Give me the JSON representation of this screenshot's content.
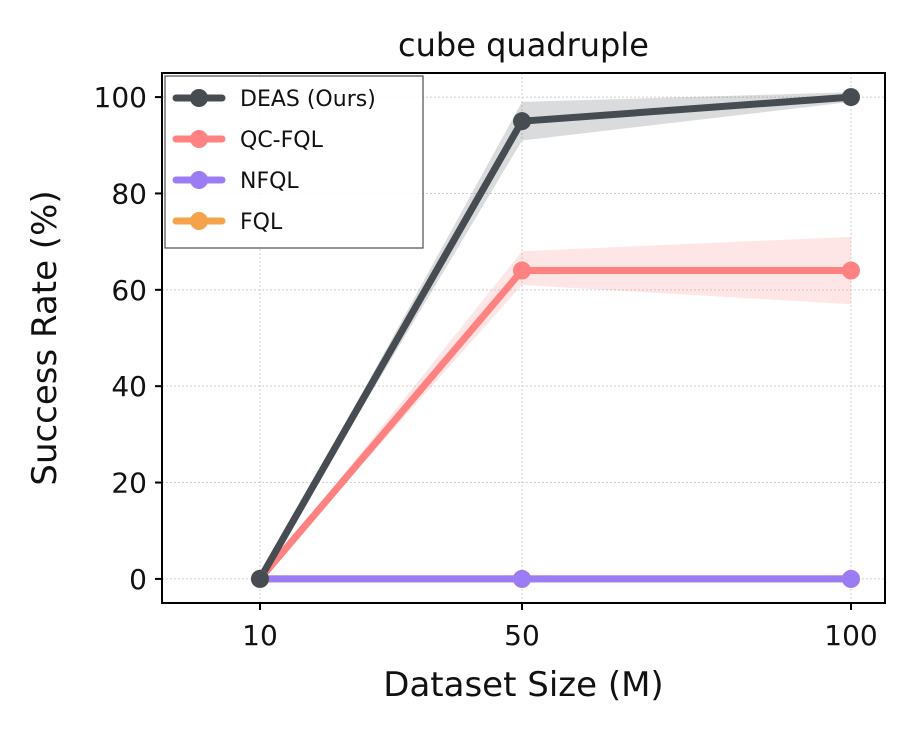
{
  "chart_data": {
    "type": "line",
    "title": "cube quadruple",
    "xlabel": "Dataset Size (M)",
    "ylabel": "Success Rate (%)",
    "categories": [
      "10",
      "50",
      "100"
    ],
    "ylim": [
      -5,
      105
    ],
    "yticks": [
      0,
      20,
      40,
      60,
      80,
      100
    ],
    "grid": true,
    "legend_position": "top-left",
    "series": [
      {
        "name": "FQL",
        "color": "#f5a34a",
        "values": [
          0,
          0,
          0
        ],
        "band": null
      },
      {
        "name": "NFQL",
        "color": "#9b7cf5",
        "values": [
          0,
          0,
          0
        ],
        "band": null
      },
      {
        "name": "QC-FQL",
        "color": "#ff8181",
        "values": [
          0,
          64,
          64
        ],
        "band": {
          "lower": [
            0,
            61,
            57
          ],
          "upper": [
            0,
            68,
            71
          ]
        }
      },
      {
        "name": "DEAS (Ours)",
        "color": "#474c52",
        "values": [
          0,
          95,
          100
        ],
        "band": {
          "lower": [
            0,
            91,
            99
          ],
          "upper": [
            0,
            99,
            101
          ]
        }
      }
    ],
    "legend_order": [
      "DEAS (Ours)",
      "QC-FQL",
      "NFQL",
      "FQL"
    ]
  }
}
